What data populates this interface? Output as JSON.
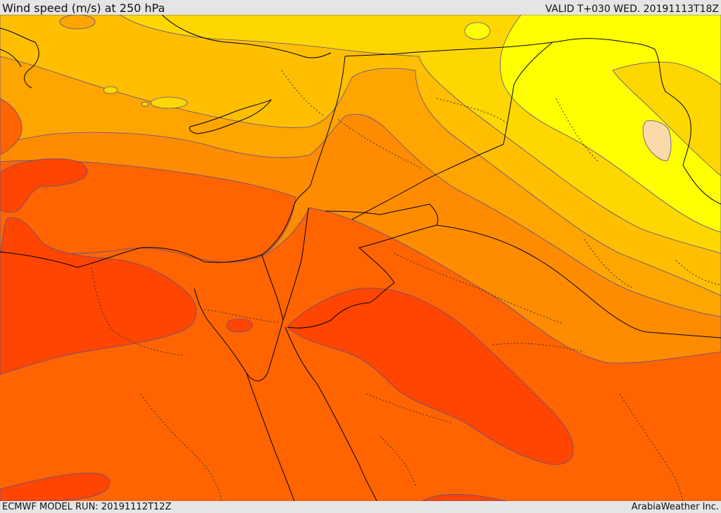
{
  "header": {
    "title": "Wind speed (m/s) at 250 hPa",
    "valid": "VALID T+030 WED. 20191113T18Z"
  },
  "footer": {
    "model_run": "ECMWF MODEL RUN: 20191112T12Z",
    "credit": "ArabiaWeather Inc."
  },
  "colors": {
    "band_yellow": "#ffff00",
    "band_gold": "#ffd700",
    "band_amber": "#ffbf00",
    "band_orange_light": "#ffa500",
    "band_orange": "#ff8c00",
    "band_orange_red": "#ff6400",
    "band_red": "#ff4500",
    "band_peach": "#fbd9a8",
    "contour": "#5a4f8f",
    "border": "#000000"
  }
}
